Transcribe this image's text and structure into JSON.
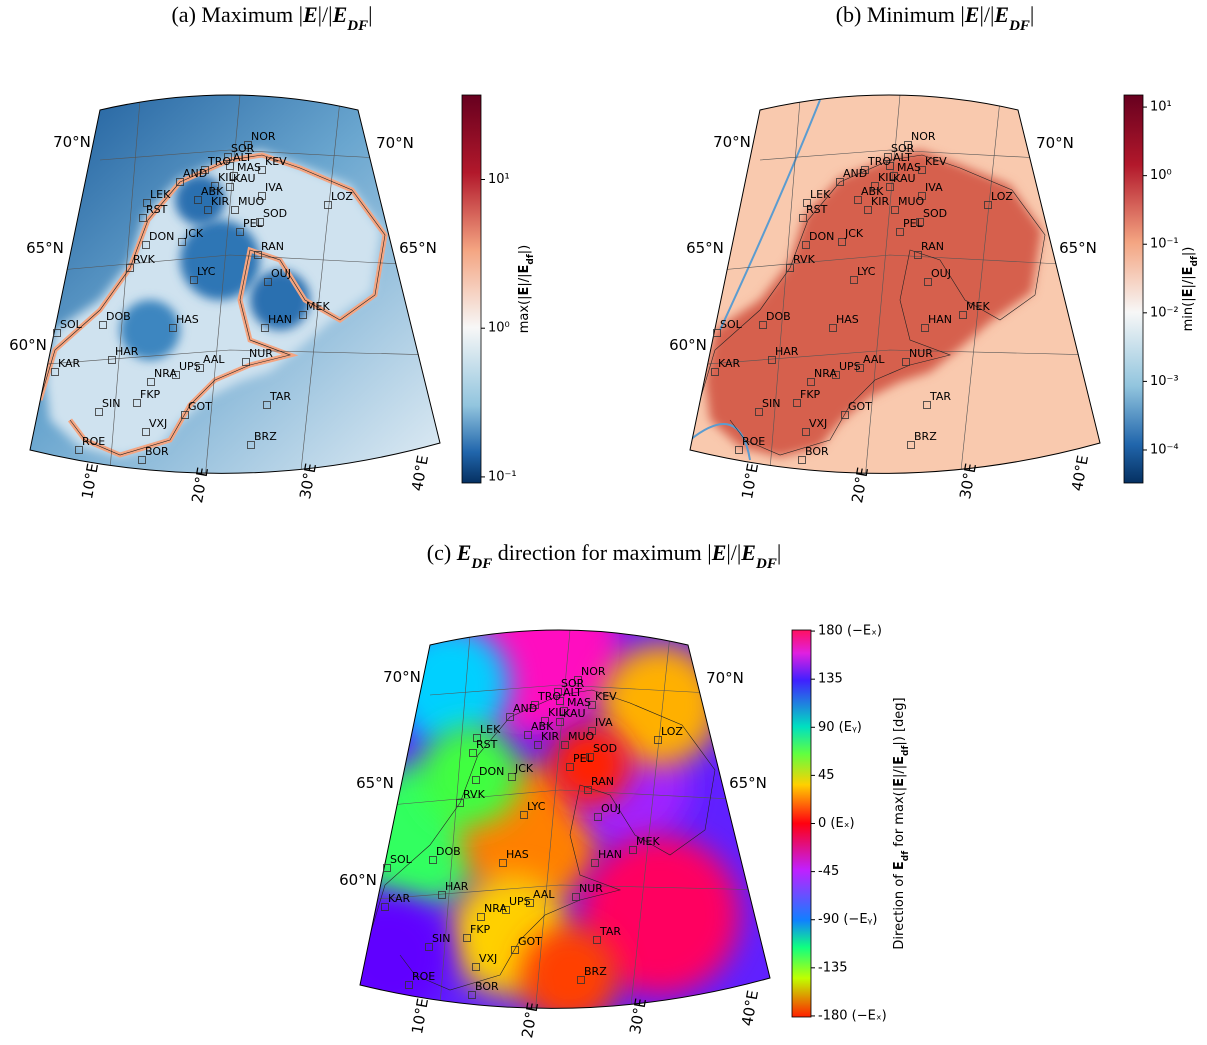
{
  "panels": [
    {
      "type": "map",
      "title": [
        "(a) Maximum |",
        "E",
        "|/|",
        "E",
        "DF",
        "|"
      ],
      "colorbar": {
        "label": [
          "max(|",
          "E",
          "|/|",
          "E",
          "df",
          "|)"
        ],
        "scale": "log",
        "lim": [
          0.091,
          37
        ],
        "ticks": [
          {
            "value": 0.1,
            "label": "10⁻¹"
          },
          {
            "value": 1,
            "label": "10⁰"
          },
          {
            "value": 10,
            "label": "10¹"
          }
        ]
      }
    },
    {
      "type": "map",
      "title": [
        "(b) Minimum |",
        "E",
        "|/|",
        "E",
        "DF",
        "|"
      ],
      "colorbar": {
        "label": [
          "min(|",
          "E",
          "|/|",
          "E",
          "df",
          "|)"
        ],
        "scale": "log",
        "lim": [
          3.3e-05,
          15
        ],
        "ticks": [
          {
            "value": 10,
            "label": "10¹"
          },
          {
            "value": 1,
            "label": "10⁰"
          },
          {
            "value": 0.1,
            "label": "10⁻¹"
          },
          {
            "value": 0.01,
            "label": "10⁻²"
          },
          {
            "value": 0.001,
            "label": "10⁻³"
          },
          {
            "value": 0.0001,
            "label": "10⁻⁴"
          }
        ]
      }
    },
    {
      "type": "map",
      "title": [
        "(c) ",
        "E",
        "DF",
        " direction for maximum |",
        "E",
        "|/|",
        "E",
        "DF",
        "|"
      ],
      "colorbar": {
        "label": [
          "Direction of ",
          "E",
          "df",
          " for max(|",
          "E",
          "|/|",
          "E",
          "df",
          "|) [deg]"
        ],
        "scale": "linear",
        "lim": [
          -181,
          181
        ],
        "ticks": [
          {
            "value": 180,
            "label": "180 (−Eₓ)"
          },
          135,
          {
            "value": 90,
            "label": "90 (Eᵧ)"
          },
          45,
          {
            "value": 0,
            "label": "0 (Eₓ)"
          },
          -45,
          {
            "value": -90,
            "label": "-90 (−Eᵧ)"
          },
          -135,
          {
            "value": -180,
            "label": "-180 (−Eₓ)"
          }
        ]
      }
    }
  ],
  "graticule": {
    "lat": [
      "70°N",
      "65°N",
      "60°N"
    ],
    "lon": [
      "10°E",
      "20°E",
      "30°E",
      "40°E"
    ]
  },
  "stations": [
    "NOR",
    "SOR",
    "ALT",
    "TRO",
    "KEV",
    "MAS",
    "AND",
    "KIL",
    "KAU",
    "IVA",
    "ABK",
    "LEK",
    "KIR",
    "MUO",
    "LOZ",
    "RST",
    "SOD",
    "PEL",
    "DON",
    "JCK",
    "RAN",
    "RVK",
    "LYC",
    "OUJ",
    "MEK",
    "DOB",
    "HAS",
    "HAN",
    "SOL",
    "NUR",
    "HAR",
    "AAL",
    "UPS",
    "KAR",
    "NRA",
    "TAR",
    "SIN",
    "FKP",
    "GOT",
    "VXJ",
    "BRZ",
    "ROE",
    "BOR"
  ]
}
